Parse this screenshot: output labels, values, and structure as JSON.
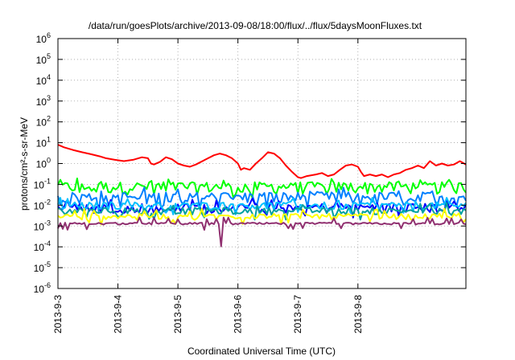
{
  "chart_data": {
    "type": "line",
    "title": "/data/run/goesPlots/archive/2013-09-08/18:00/flux/../flux/5daysMoonFluxes.txt",
    "xlabel": "Coordinated Universal Time (UTC)",
    "ylabel": "protons/cm²-s-sr-MeV",
    "yscale": "log",
    "ylim": [
      1e-06,
      1000000.0
    ],
    "xlim": [
      0,
      6.8
    ],
    "xlim_dates": [
      "2013-09-03",
      "2013-09-09T19:12"
    ],
    "y_ticks": [
      {
        "value": 1e-06,
        "base": "10",
        "exp": "-6"
      },
      {
        "value": 1e-05,
        "base": "10",
        "exp": "-5"
      },
      {
        "value": 0.0001,
        "base": "10",
        "exp": "-4"
      },
      {
        "value": 0.001,
        "base": "10",
        "exp": "-3"
      },
      {
        "value": 0.01,
        "base": "10",
        "exp": "-2"
      },
      {
        "value": 0.1,
        "base": "10",
        "exp": "-1"
      },
      {
        "value": 1.0,
        "base": "10",
        "exp": "0"
      },
      {
        "value": 10.0,
        "base": "10",
        "exp": "1"
      },
      {
        "value": 100.0,
        "base": "10",
        "exp": "2"
      },
      {
        "value": 1000.0,
        "base": "10",
        "exp": "3"
      },
      {
        "value": 10000.0,
        "base": "10",
        "exp": "4"
      },
      {
        "value": 100000.0,
        "base": "10",
        "exp": "5"
      },
      {
        "value": 1000000.0,
        "base": "10",
        "exp": "6"
      }
    ],
    "x_ticks": [
      {
        "value": 0,
        "label": "2013-9-3"
      },
      {
        "value": 1,
        "label": "2013-9-4"
      },
      {
        "value": 2,
        "label": "2013-9-5"
      },
      {
        "value": 3,
        "label": "2013-9-6"
      },
      {
        "value": 4,
        "label": "2013-9-7"
      },
      {
        "value": 5,
        "label": "2013-9-8"
      }
    ],
    "grid": true,
    "series": [
      {
        "color": "#ff0000",
        "x": [
          0,
          0.1,
          0.25,
          0.4,
          0.55,
          0.7,
          0.8,
          0.95,
          1.1,
          1.25,
          1.4,
          1.5,
          1.55,
          1.6,
          1.7,
          1.8,
          1.9,
          2.0,
          2.1,
          2.2,
          2.3,
          2.45,
          2.6,
          2.7,
          2.8,
          2.9,
          3.0,
          3.05,
          3.1,
          3.2,
          3.3,
          3.4,
          3.5,
          3.6,
          3.7,
          3.8,
          3.9,
          3.95,
          4.0,
          4.05,
          4.15,
          4.3,
          4.4,
          4.5,
          4.6,
          4.7,
          4.8,
          4.9,
          5.0,
          5.05,
          5.1,
          5.2,
          5.3,
          5.4,
          5.5,
          5.6,
          5.7,
          5.8,
          5.9,
          6.0,
          6.1,
          6.2,
          6.3,
          6.4,
          6.5,
          6.6,
          6.7,
          6.8
        ],
        "y": [
          8,
          6,
          4.5,
          3.5,
          2.8,
          2.2,
          1.8,
          1.5,
          1.3,
          1.5,
          2.0,
          1.8,
          1.0,
          0.9,
          1.2,
          2.0,
          1.6,
          1.0,
          0.8,
          0.7,
          0.9,
          1.5,
          2.5,
          3.0,
          2.5,
          1.8,
          1.0,
          0.5,
          0.6,
          0.5,
          1.0,
          1.8,
          3.5,
          3.0,
          1.8,
          0.8,
          0.4,
          0.3,
          0.22,
          0.2,
          0.25,
          0.3,
          0.35,
          0.25,
          0.3,
          0.5,
          0.8,
          0.9,
          0.7,
          0.4,
          0.25,
          0.3,
          0.25,
          0.3,
          0.22,
          0.3,
          0.35,
          0.5,
          0.6,
          0.8,
          0.6,
          1.3,
          0.8,
          1.0,
          0.8,
          0.9,
          1.3,
          0.9
        ]
      },
      {
        "color": "#00ff00",
        "base": 0.08,
        "amp": 0.3
      },
      {
        "color": "#0080ff",
        "base": 0.025,
        "amp": 0.35
      },
      {
        "color": "#0000ff",
        "base": 0.008,
        "amp": 0.25
      },
      {
        "color": "#00c0ff",
        "base": 0.01,
        "amp": 0.2
      },
      {
        "color": "#00a0a0",
        "base": 0.0055,
        "amp": 0.18
      },
      {
        "color": "#ffff00",
        "base": 0.003,
        "amp": 0.15
      },
      {
        "color": "#903070",
        "base": 0.0013,
        "amp": 0.06
      }
    ]
  }
}
